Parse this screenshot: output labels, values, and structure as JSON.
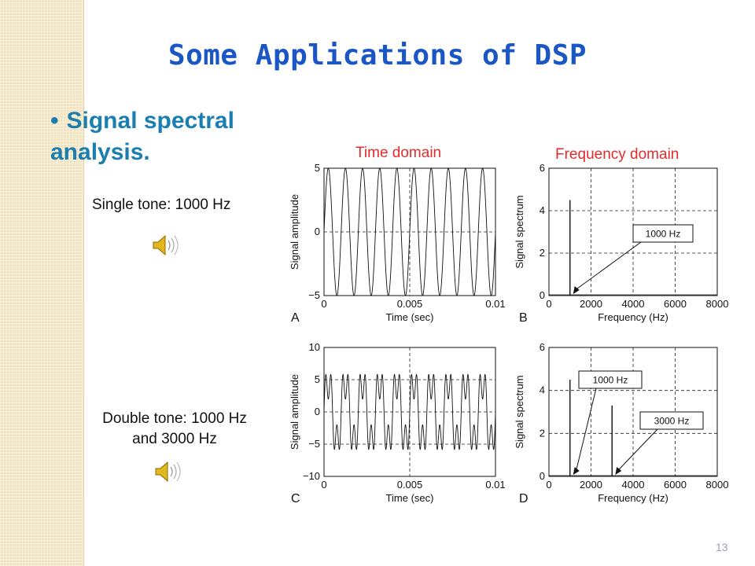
{
  "slide": {
    "title": "Some Applications of DSP",
    "bullet": "Signal spectral analysis.",
    "caption_single": "Single tone: 1000 Hz",
    "caption_double": "Double tone: 1000 Hz and 3000 Hz",
    "label_time": "Time domain",
    "label_freq": "Frequency domain",
    "page_number": "13",
    "audio_icon": "speaker-sound-icon",
    "title_color": "#1a56c4",
    "bullet_color": "#1a7fb0",
    "label_color": "#e32b2b"
  },
  "chart_data": [
    {
      "type": "line",
      "panel": "A",
      "xlabel": "Time (sec)",
      "ylabel": "Signal amplitude",
      "xlim": [
        0,
        0.01
      ],
      "ylim": [
        -5,
        5
      ],
      "xticks": [
        "0",
        "0.005",
        "0.01"
      ],
      "yticks": [
        "5",
        "0",
        "−5"
      ],
      "series": [
        {
          "frequency_hz": 1000,
          "amplitude": 5
        }
      ],
      "grid": "dashed center lines"
    },
    {
      "type": "line",
      "panel": "B",
      "xlabel": "Frequency (Hz)",
      "ylabel": "Signal spectrum",
      "xlim": [
        0,
        8000
      ],
      "ylim": [
        0,
        6
      ],
      "xticks": [
        "0",
        "2000",
        "4000",
        "6000",
        "8000"
      ],
      "yticks": [
        "6",
        "4",
        "2",
        "0"
      ],
      "peaks": [
        {
          "x": 1000,
          "y": 4.5
        }
      ],
      "annotations": [
        {
          "text": "1000 Hz",
          "points_to_x": 1000
        }
      ],
      "grid": "dashed"
    },
    {
      "type": "line",
      "panel": "C",
      "xlabel": "Time (sec)",
      "ylabel": "Signal amplitude",
      "xlim": [
        0,
        0.01
      ],
      "ylim": [
        -10,
        10
      ],
      "xticks": [
        "0",
        "0.005",
        "0.01"
      ],
      "yticks": [
        "10",
        "5",
        "0",
        "−5",
        "−10"
      ],
      "series": [
        {
          "frequency_hz": 1000,
          "amplitude": 5
        },
        {
          "frequency_hz": 3000,
          "amplitude": 3
        }
      ],
      "grid": "dashed"
    },
    {
      "type": "line",
      "panel": "D",
      "xlabel": "Frequency (Hz)",
      "ylabel": "Signal spectrum",
      "xlim": [
        0,
        8000
      ],
      "ylim": [
        0,
        6
      ],
      "xticks": [
        "0",
        "2000",
        "4000",
        "6000",
        "8000"
      ],
      "yticks": [
        "6",
        "4",
        "2",
        "0"
      ],
      "peaks": [
        {
          "x": 1000,
          "y": 4.5
        },
        {
          "x": 3000,
          "y": 3.3
        }
      ],
      "annotations": [
        {
          "text": "1000 Hz",
          "points_to_x": 1000
        },
        {
          "text": "3000 Hz",
          "points_to_x": 3000
        }
      ],
      "grid": "dashed"
    }
  ]
}
